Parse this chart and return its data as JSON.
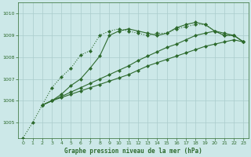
{
  "title": "Graphe pression niveau de la mer (hPa)",
  "background_color": "#cce8e8",
  "grid_color": "#aacccc",
  "line_color": "#2d6a2d",
  "xlim": [
    -0.5,
    23.5
  ],
  "ylim": [
    1004.3,
    1010.5
  ],
  "yticks": [
    1005,
    1006,
    1007,
    1008,
    1009,
    1010
  ],
  "xticks": [
    0,
    1,
    2,
    3,
    4,
    5,
    6,
    7,
    8,
    9,
    10,
    11,
    12,
    13,
    14,
    15,
    16,
    17,
    18,
    19,
    20,
    21,
    22,
    23
  ],
  "series": [
    {
      "x": [
        0,
        1,
        2,
        3,
        4,
        5,
        6,
        7,
        8,
        9,
        10,
        11,
        12,
        13,
        14,
        15,
        16,
        17,
        18,
        19,
        20,
        21,
        22,
        23
      ],
      "y": [
        1004.3,
        1005.0,
        1005.8,
        1006.6,
        1007.1,
        1007.5,
        1008.1,
        1008.3,
        1009.0,
        1009.2,
        1009.3,
        1009.2,
        1009.1,
        1009.0,
        1009.1,
        1009.1,
        1009.3,
        1009.4,
        1009.5,
        1009.5,
        1009.2,
        1009.0,
        1009.0,
        1008.7
      ],
      "marker": "D",
      "markersize": 2.0,
      "linewidth": 0.8,
      "linestyle": ":"
    },
    {
      "x": [
        2,
        3,
        4,
        5,
        6,
        7,
        8,
        9,
        10,
        11,
        12,
        13,
        14,
        15,
        16,
        17,
        18,
        19,
        20,
        21,
        22,
        23
      ],
      "y": [
        1005.8,
        1006.0,
        1006.3,
        1006.7,
        1007.0,
        1007.5,
        1008.05,
        1009.0,
        1009.2,
        1009.3,
        1009.2,
        1009.1,
        1009.0,
        1009.1,
        1009.35,
        1009.5,
        1009.6,
        1009.5,
        1009.2,
        1009.0,
        1009.0,
        1008.7
      ],
      "marker": "D",
      "markersize": 2.0,
      "linewidth": 0.8,
      "linestyle": "-"
    },
    {
      "x": [
        2,
        3,
        4,
        5,
        6,
        7,
        8,
        9,
        10,
        11,
        12,
        13,
        14,
        15,
        16,
        17,
        18,
        19,
        20,
        21,
        22,
        23
      ],
      "y": [
        1005.8,
        1006.0,
        1006.2,
        1006.4,
        1006.6,
        1006.8,
        1007.0,
        1007.2,
        1007.4,
        1007.6,
        1007.85,
        1008.05,
        1008.25,
        1008.45,
        1008.6,
        1008.8,
        1009.0,
        1009.1,
        1009.2,
        1009.1,
        1009.0,
        1008.7
      ],
      "marker": "D",
      "markersize": 2.0,
      "linewidth": 0.8,
      "linestyle": "-"
    },
    {
      "x": [
        2,
        3,
        4,
        5,
        6,
        7,
        8,
        9,
        10,
        11,
        12,
        13,
        14,
        15,
        16,
        17,
        18,
        19,
        20,
        21,
        22,
        23
      ],
      "y": [
        1005.8,
        1006.0,
        1006.15,
        1006.3,
        1006.45,
        1006.6,
        1006.75,
        1006.9,
        1007.05,
        1007.2,
        1007.4,
        1007.6,
        1007.75,
        1007.9,
        1008.05,
        1008.2,
        1008.35,
        1008.5,
        1008.6,
        1008.7,
        1008.8,
        1008.7
      ],
      "marker": "D",
      "markersize": 2.0,
      "linewidth": 0.8,
      "linestyle": "-"
    }
  ]
}
